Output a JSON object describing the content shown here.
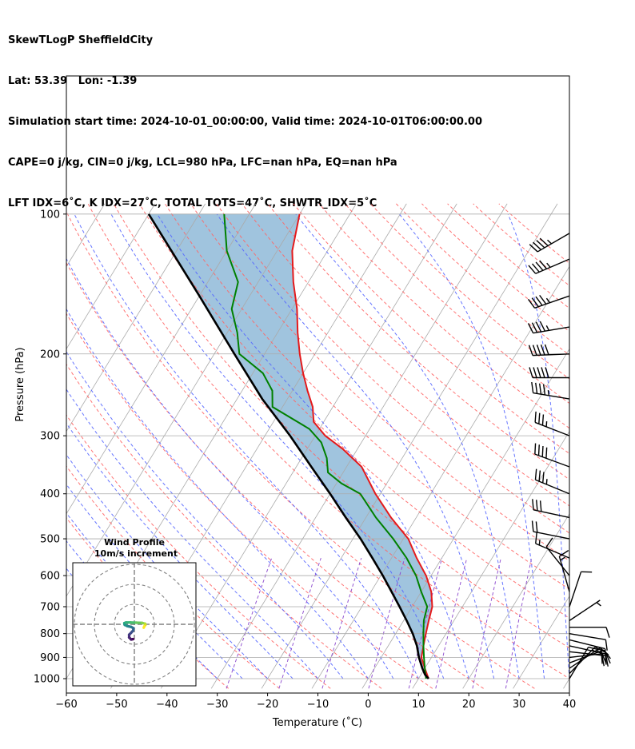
{
  "header": {
    "line1": "SkewTLogP SheffieldCity",
    "line2": "Lat: 53.39   Lon: -1.39",
    "line3": "Simulation start time: 2024-10-01_00:00:00, Valid time: 2024-10-01T06:00:00.00",
    "line4": "CAPE=0 j/kg, CIN=0 j/kg, LCL=980 hPa, LFC=nan hPa, EQ=nan hPa",
    "line5": "LFT IDX=6˚C, K IDX=27˚C, TOTAL TOTS=47˚C, SHWTR_IDX=5˚C"
  },
  "chart_data": {
    "type": "line",
    "subtype": "skew-t log-p",
    "xlabel": "Temperature (˚C)",
    "ylabel": "Pressure (hPa)",
    "xlim": [
      -60,
      40
    ],
    "ylim": [
      1050,
      100
    ],
    "y_scale": "log",
    "x_ticks": [
      -60,
      -50,
      -40,
      -30,
      -20,
      -10,
      0,
      10,
      20,
      30,
      40
    ],
    "y_ticks": [
      100,
      200,
      300,
      400,
      500,
      600,
      700,
      800,
      900,
      1000
    ],
    "grid": true,
    "colors": {
      "temperature": "#e41a1c",
      "dewpoint": "#008000",
      "parcel": "#000000",
      "fill": "#a0c4de",
      "dry_adiabat": "#ff6666",
      "moist_adiabat": "#5566ff",
      "mixing_ratio": "#8844cc",
      "isotherm": "#aaaaaa"
    },
    "series": [
      {
        "key": "temperature",
        "points": [
          [
            1000,
            12
          ],
          [
            950,
            10
          ],
          [
            900,
            8
          ],
          [
            850,
            7
          ],
          [
            800,
            6
          ],
          [
            750,
            5
          ],
          [
            700,
            4
          ],
          [
            650,
            2
          ],
          [
            600,
            -1
          ],
          [
            550,
            -5
          ],
          [
            500,
            -9
          ],
          [
            450,
            -15
          ],
          [
            400,
            -21
          ],
          [
            350,
            -27
          ],
          [
            320,
            -33
          ],
          [
            300,
            -38
          ],
          [
            280,
            -42
          ],
          [
            260,
            -44
          ],
          [
            240,
            -47
          ],
          [
            220,
            -50
          ],
          [
            200,
            -53
          ],
          [
            180,
            -56
          ],
          [
            160,
            -59
          ],
          [
            140,
            -63
          ],
          [
            120,
            -67
          ],
          [
            100,
            -70
          ]
        ]
      },
      {
        "key": "dewpoint",
        "points": [
          [
            1000,
            11.5
          ],
          [
            950,
            10
          ],
          [
            900,
            8.5
          ],
          [
            850,
            7
          ],
          [
            800,
            5.5
          ],
          [
            750,
            4
          ],
          [
            700,
            3
          ],
          [
            650,
            0
          ],
          [
            600,
            -3
          ],
          [
            550,
            -7
          ],
          [
            500,
            -12
          ],
          [
            450,
            -18
          ],
          [
            400,
            -24
          ],
          [
            380,
            -29
          ],
          [
            360,
            -33
          ],
          [
            335,
            -35
          ],
          [
            310,
            -38
          ],
          [
            290,
            -42
          ],
          [
            260,
            -52
          ],
          [
            240,
            -54
          ],
          [
            220,
            -58
          ],
          [
            200,
            -65
          ],
          [
            180,
            -68
          ],
          [
            160,
            -72
          ],
          [
            140,
            -74
          ],
          [
            120,
            -80
          ],
          [
            100,
            -85
          ]
        ]
      },
      {
        "key": "parcel",
        "points": [
          [
            1000,
            12
          ],
          [
            980,
            10.8
          ],
          [
            950,
            9.5
          ],
          [
            900,
            7.5
          ],
          [
            850,
            5.7
          ],
          [
            800,
            3.4
          ],
          [
            750,
            0.6
          ],
          [
            700,
            -2.5
          ],
          [
            650,
            -5.9
          ],
          [
            600,
            -9.6
          ],
          [
            550,
            -13.8
          ],
          [
            500,
            -18.5
          ],
          [
            450,
            -24
          ],
          [
            400,
            -30
          ],
          [
            350,
            -37
          ],
          [
            300,
            -45
          ],
          [
            250,
            -55
          ],
          [
            200,
            -66
          ],
          [
            150,
            -80
          ],
          [
            100,
            -100
          ]
        ]
      }
    ],
    "hodograph": {
      "title": "Wind Profile",
      "subtitle": "10m/s increment",
      "ring_step_ms": 10,
      "rings": 3,
      "colormap": "viridis",
      "points": [
        [
          -0.6,
          -7.4
        ],
        [
          -1.6,
          -7.6
        ],
        [
          -2.6,
          -6.6
        ],
        [
          -2.6,
          -5.2
        ],
        [
          -1.6,
          -4.2
        ],
        [
          -0.6,
          -3.1
        ],
        [
          -0.4,
          -2.0
        ],
        [
          -1.6,
          -1.3
        ],
        [
          -3.6,
          -0.9
        ],
        [
          -4.8,
          -0.3
        ],
        [
          -5.0,
          0.6
        ],
        [
          -4.2,
          0.9
        ],
        [
          -2.0,
          0.9
        ],
        [
          1.0,
          0.8
        ],
        [
          3.9,
          0.7
        ],
        [
          5.4,
          0.3
        ],
        [
          5.5,
          -0.3
        ],
        [
          5.0,
          -1.0
        ],
        [
          4.7,
          -1.7
        ]
      ]
    },
    "wind_barbs": [
      {
        "p": 1000,
        "u": -3.0,
        "v": -5.0
      },
      {
        "p": 975,
        "u": -5.5,
        "v": -5.7
      },
      {
        "p": 950,
        "u": -7.5,
        "v": -5.0
      },
      {
        "p": 925,
        "u": -8.0,
        "v": -3.0
      },
      {
        "p": 900,
        "u": -9.0,
        "v": -1.0
      },
      {
        "p": 875,
        "u": -9.0,
        "v": 1.0
      },
      {
        "p": 850,
        "u": -9.0,
        "v": 2.0
      },
      {
        "p": 825,
        "u": -8.0,
        "v": 2.0
      },
      {
        "p": 800,
        "u": -6.0,
        "v": 1.0
      },
      {
        "p": 775,
        "u": -4.0,
        "v": 0.0
      },
      {
        "p": 750,
        "u": -3.0,
        "v": -2.0
      },
      {
        "p": 700,
        "u": -2.0,
        "v": -6.0
      },
      {
        "p": 650,
        "u": 2.0,
        "v": -7.0
      },
      {
        "p": 600,
        "u": 4.0,
        "v": -5.0
      },
      {
        "p": 550,
        "u": 7.0,
        "v": -3.0
      },
      {
        "p": 500,
        "u": 10.0,
        "v": -2.0
      },
      {
        "p": 450,
        "u": 14.0,
        "v": -3.0
      },
      {
        "p": 400,
        "u": 17.0,
        "v": -7.0
      },
      {
        "p": 350,
        "u": 19.0,
        "v": -7.0
      },
      {
        "p": 300,
        "u": 18.0,
        "v": -7.0
      },
      {
        "p": 250,
        "u": 24.0,
        "v": -4.0
      },
      {
        "p": 225,
        "u": 26.0,
        "v": 0.0
      },
      {
        "p": 200,
        "u": 25.0,
        "v": 1.0
      },
      {
        "p": 175,
        "u": 24.0,
        "v": 4.0
      },
      {
        "p": 150,
        "u": 23.0,
        "v": 8.0
      },
      {
        "p": 125,
        "u": 21.0,
        "v": 9.0
      },
      {
        "p": 110,
        "u": 19.0,
        "v": 11.0
      }
    ]
  }
}
